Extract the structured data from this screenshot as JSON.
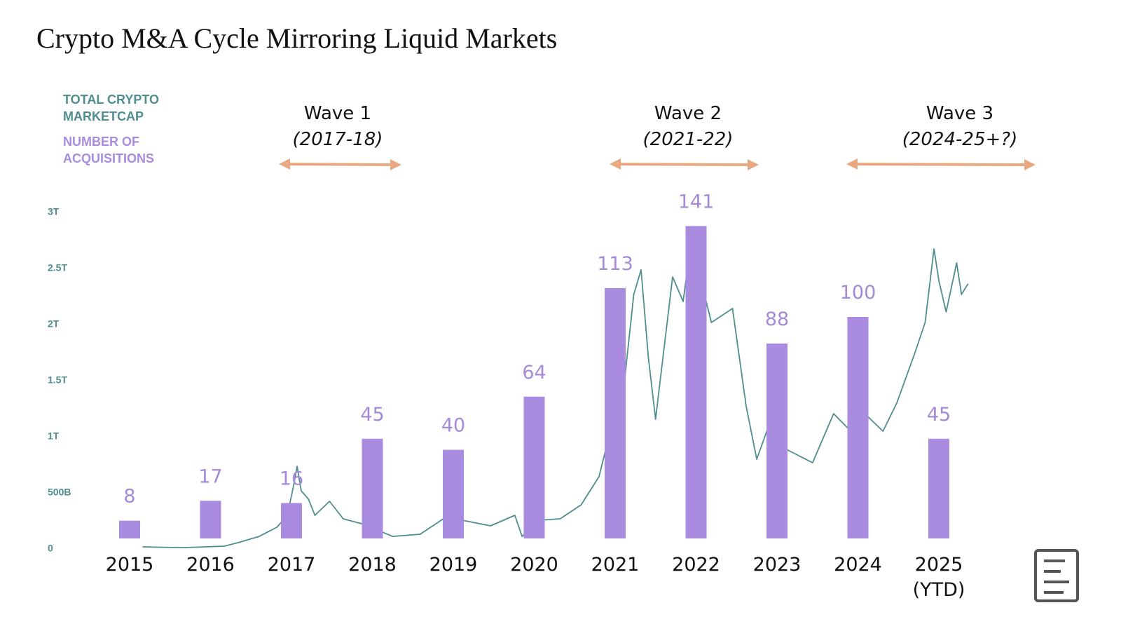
{
  "chart_data": {
    "type": "bar",
    "title": "Crypto M&A Cycle Mirroring Liquid Markets",
    "categories": [
      "2015",
      "2016",
      "2017",
      "2018",
      "2019",
      "2020",
      "2021",
      "2022",
      "2023",
      "2024",
      "2025 (YTD)"
    ],
    "series": [
      {
        "name": "TOTAL CRYPTO MARKETCAP",
        "type": "line",
        "color": "#4f8d8f",
        "x": [
          2015.66,
          2016.15,
          2016.67,
          2016.84,
          2017.1,
          2017.32,
          2017.45,
          2017.53,
          2017.57,
          2017.62,
          2017.71,
          2017.79,
          2017.97,
          2018.14,
          2018.4,
          2018.75,
          2019.09,
          2019.31,
          2019.44,
          2019.61,
          2019.96,
          2020.26,
          2020.35,
          2020.56,
          2020.82,
          2021.08,
          2021.3,
          2021.43,
          2021.52,
          2021.6,
          2021.73,
          2021.82,
          2021.91,
          2022.0,
          2022.21,
          2022.34,
          2022.45,
          2022.56,
          2022.69,
          2022.95,
          2023.12,
          2023.25,
          2023.42,
          2023.6,
          2023.77,
          2023.94,
          2024.2,
          2024.37,
          2024.63,
          2024.81,
          2024.98,
          2025.2,
          2025.33,
          2025.44,
          2025.5,
          2025.59,
          2025.72,
          2025.78,
          2025.86
        ],
        "values": [
          19,
          12,
          25,
          56,
          112,
          194,
          300,
          581,
          737,
          519,
          444,
          300,
          425,
          269,
          219,
          112,
          131,
          237,
          300,
          256,
          206,
          300,
          112,
          256,
          269,
          394,
          644,
          1019,
          1738,
          1394,
          2269,
          2488,
          1706,
          1156,
          2425,
          2206,
          2800,
          2394,
          2019,
          2144,
          1269,
          800,
          1144,
          894,
          831,
          769,
          1206,
          1081,
          1175,
          1050,
          1300,
          1738,
          2019,
          2675,
          2394,
          2113,
          2550,
          2269,
          2363
        ]
      },
      {
        "name": "NUMBER OF ACQUISITIONS",
        "type": "bar",
        "color": "#a98be0",
        "axis": "y2",
        "values": [
          8,
          17,
          16,
          45,
          40,
          64,
          113,
          141,
          88,
          100,
          45
        ]
      }
    ],
    "xlim": [
      2014.9,
      2026.2
    ],
    "ylim": [
      0,
      3000
    ],
    "yticks": [
      0,
      {
        "value": 500,
        "label": "500B"
      },
      {
        "value": 1000,
        "label": "1T"
      },
      {
        "value": 1500,
        "label": "1.5T"
      },
      {
        "value": 2000,
        "label": "2T"
      },
      {
        "value": 2500,
        "label": "2.5T"
      },
      {
        "value": 3000,
        "label": "3T"
      }
    ],
    "y2lim": [
      0,
      150
    ],
    "annotations": [
      {
        "label": "Wave 1",
        "period": "(2017-18)"
      },
      {
        "label": "Wave 2",
        "period": "(2021-22)"
      },
      {
        "label": "Wave 3",
        "period": "(2024-25+?)"
      }
    ]
  }
}
